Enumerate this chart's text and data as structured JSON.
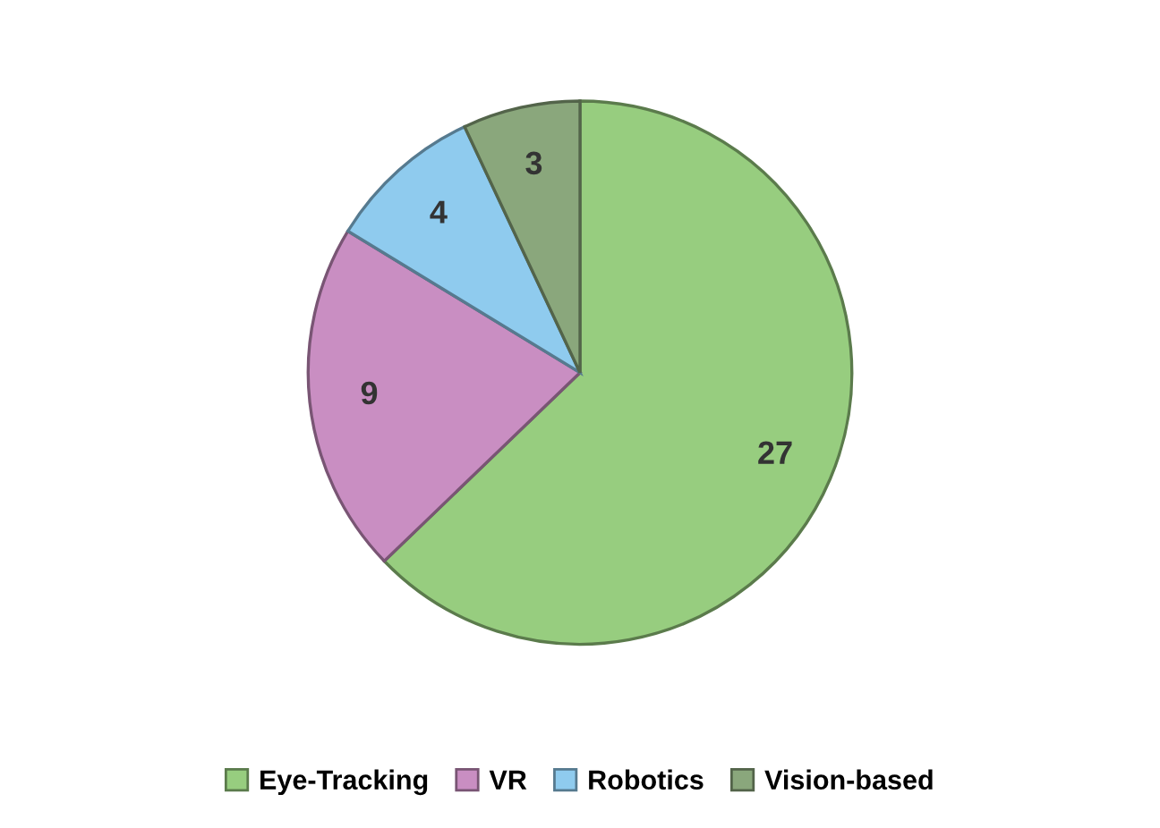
{
  "chart_data": {
    "type": "pie",
    "categories": [
      "Eye-Tracking",
      "VR",
      "Robotics",
      "Vision-based"
    ],
    "values": [
      27,
      9,
      4,
      3
    ],
    "colors": [
      "#97cd7f",
      "#c98ec2",
      "#8fcbee",
      "#8aa77c"
    ],
    "data_labels": true,
    "legend": "bottom"
  }
}
